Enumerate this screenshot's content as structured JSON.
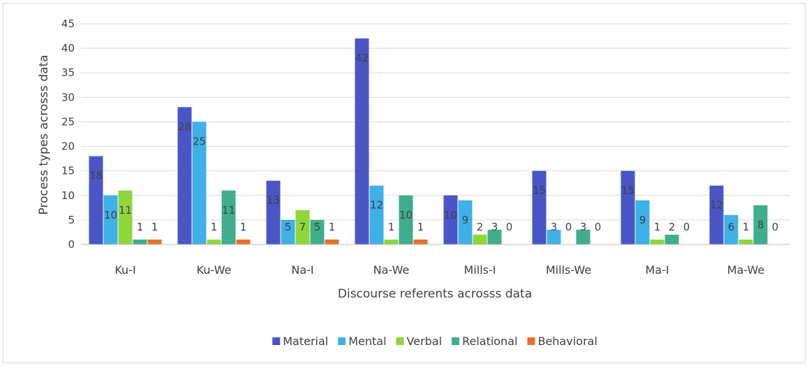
{
  "chart_data": {
    "type": "bar",
    "title": "",
    "xlabel": "Discourse referents acrosss data",
    "ylabel": "Process types acrosss data",
    "ylim": [
      0,
      45
    ],
    "yticks": [
      "0",
      "5",
      "10",
      "15",
      "20",
      "25",
      "30",
      "35",
      "40",
      "45"
    ],
    "grid": true,
    "legend_position": "bottom",
    "categories": [
      "Ku-I",
      "Ku-We",
      "Na-I",
      "Na-We",
      "Mills-I",
      "Mills-We",
      "Ma-I",
      "Ma-We"
    ],
    "series": [
      {
        "name": "Material",
        "color": "#4a56c6",
        "values": [
          18,
          28,
          13,
          42,
          10,
          15,
          15,
          12
        ],
        "labels": [
          "18",
          "28",
          "13",
          "42",
          "10",
          "15",
          "15",
          "12"
        ]
      },
      {
        "name": "Mental",
        "color": "#3fb0e8",
        "values": [
          10,
          25,
          5,
          12,
          9,
          3,
          9,
          6
        ],
        "labels": [
          "10",
          "25",
          "5",
          "12",
          "9",
          "3",
          "9",
          "6"
        ]
      },
      {
        "name": "Verbal",
        "color": "#8fd63a",
        "values": [
          11,
          1,
          7,
          1,
          2,
          0,
          1,
          1
        ],
        "labels": [
          "11",
          "1",
          "7",
          "1",
          "2",
          "0",
          "1",
          "1"
        ]
      },
      {
        "name": "Relational",
        "color": "#3fae8c",
        "values": [
          1,
          11,
          5,
          10,
          3,
          3,
          2,
          8
        ],
        "labels": [
          "1",
          "11",
          "5",
          "10",
          "3",
          "3",
          "2",
          "8"
        ]
      },
      {
        "name": "Behavioral",
        "color": "#e8712a",
        "values": [
          1,
          1,
          1,
          1,
          0,
          0,
          0,
          0
        ],
        "labels": [
          "1",
          "1",
          "1",
          "1",
          "0",
          "0",
          "0",
          "0"
        ]
      }
    ]
  }
}
